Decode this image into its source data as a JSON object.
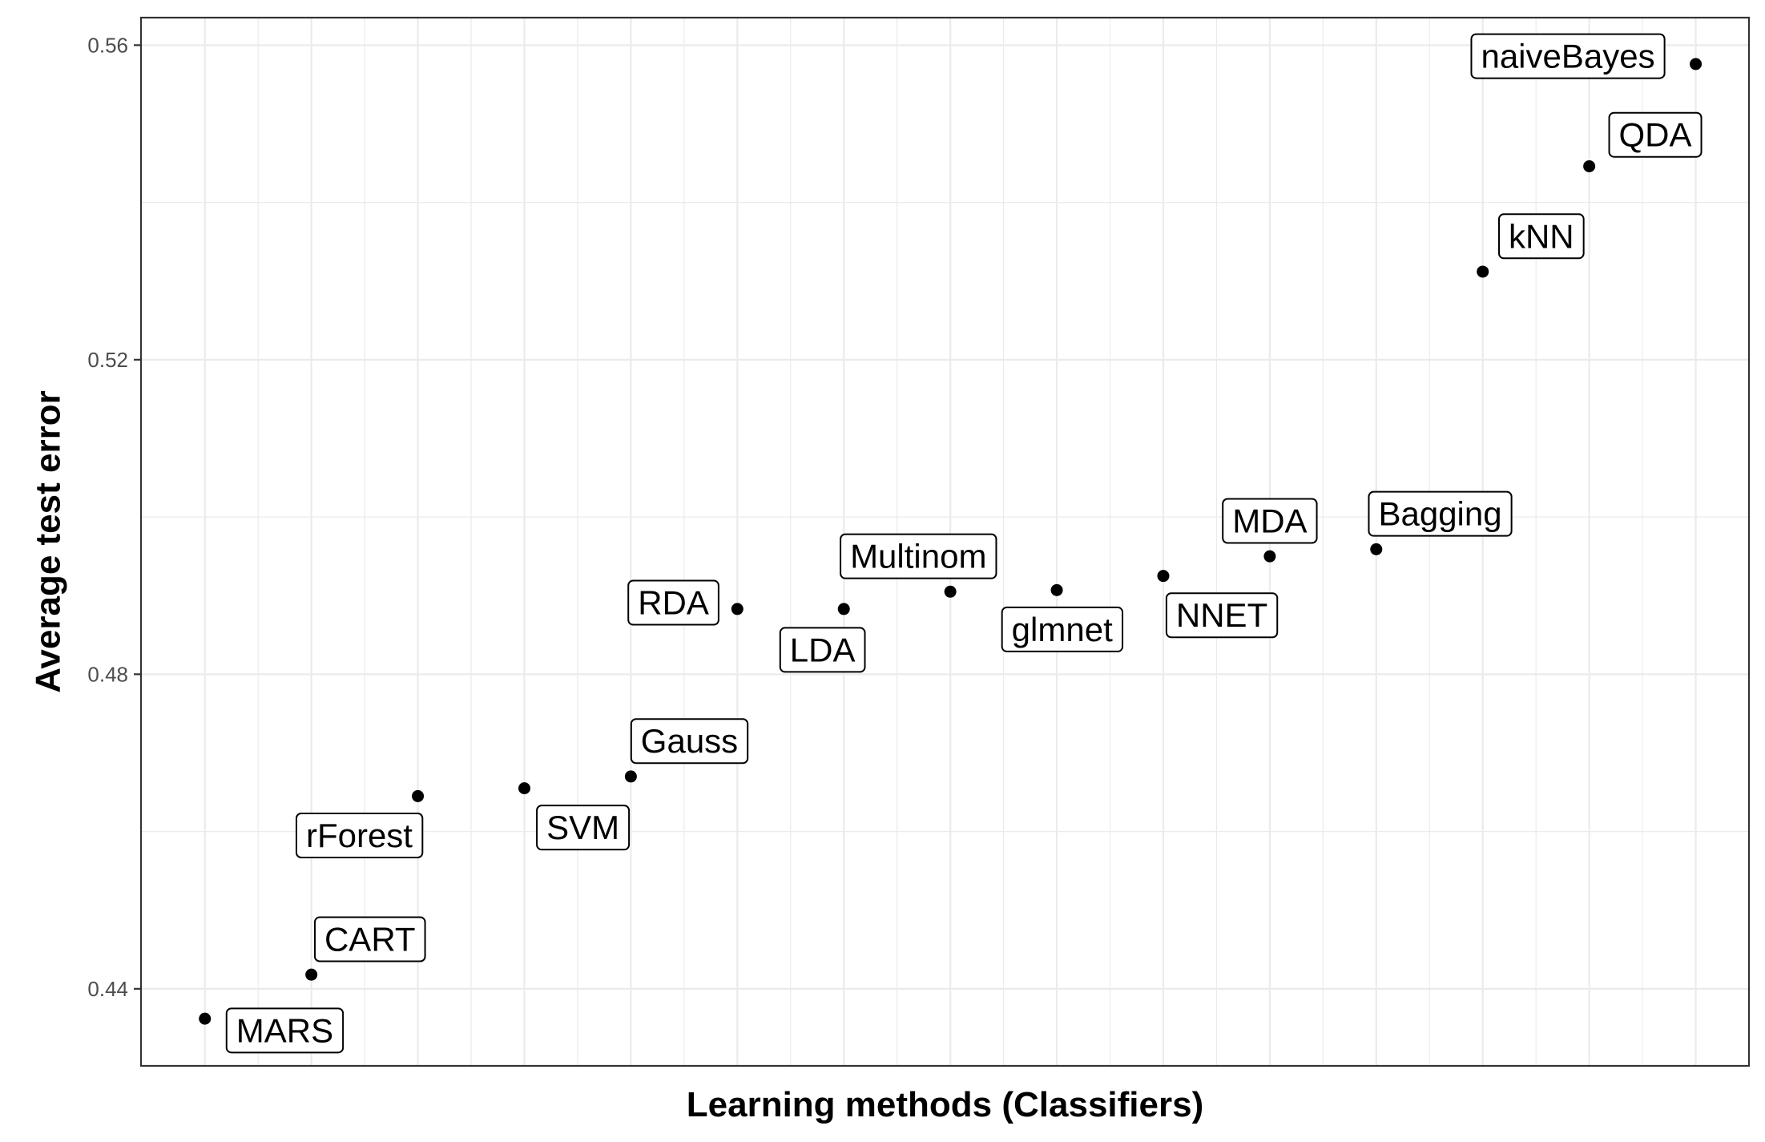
{
  "chart_data": {
    "type": "scatter",
    "title": "",
    "xlabel": "Learning methods (Classifiers)",
    "ylabel": "Average test error",
    "ylim": [
      0.4302,
      0.5635
    ],
    "yticks": [
      0.44,
      0.48,
      0.52,
      0.56
    ],
    "ytick_labels": [
      "0.44",
      "0.48",
      "0.52",
      "0.56"
    ],
    "xlim": [
      0.4,
      15.5
    ],
    "grid": true,
    "legend": "none",
    "point_color": "#000000",
    "points": [
      {
        "x": 1,
        "y": 0.4362,
        "label": "MARS",
        "label_dx": 0.75,
        "label_dy": -0.0015
      },
      {
        "x": 2,
        "y": 0.4418,
        "label": "CART",
        "label_dx": 0.55,
        "label_dy": 0.0045
      },
      {
        "x": 3,
        "y": 0.4645,
        "label": "rForest",
        "label_dx": -0.55,
        "label_dy": -0.005
      },
      {
        "x": 4,
        "y": 0.4655,
        "label": "SVM",
        "label_dx": 0.55,
        "label_dy": -0.005
      },
      {
        "x": 5,
        "y": 0.467,
        "label": "Gauss",
        "label_dx": 0.55,
        "label_dy": 0.0045
      },
      {
        "x": 6,
        "y": 0.4883,
        "label": "RDA",
        "label_dx": -0.6,
        "label_dy": 0.0008
      },
      {
        "x": 7,
        "y": 0.4883,
        "label": "LDA",
        "label_dx": -0.2,
        "label_dy": -0.0052
      },
      {
        "x": 8,
        "y": 0.4905,
        "label": "Multinom",
        "label_dx": -0.3,
        "label_dy": 0.0045
      },
      {
        "x": 9,
        "y": 0.4907,
        "label": "glmnet",
        "label_dx": 0.05,
        "label_dy": -0.005
      },
      {
        "x": 10,
        "y": 0.4925,
        "label": "NNET",
        "label_dx": 0.55,
        "label_dy": -0.005
      },
      {
        "x": 11,
        "y": 0.495,
        "label": "MDA",
        "label_dx": 0.0,
        "label_dy": 0.0045
      },
      {
        "x": 12,
        "y": 0.4959,
        "label": "Bagging",
        "label_dx": 0.6,
        "label_dy": 0.0045
      },
      {
        "x": 13,
        "y": 0.5312,
        "label": "kNN",
        "label_dx": 0.55,
        "label_dy": 0.0045
      },
      {
        "x": 14,
        "y": 0.5446,
        "label": "QDA",
        "label_dx": 0.62,
        "label_dy": 0.004
      },
      {
        "x": 15,
        "y": 0.5576,
        "label": "naiveBayes",
        "label_dx": -1.2,
        "label_dy": 0.001
      }
    ]
  }
}
